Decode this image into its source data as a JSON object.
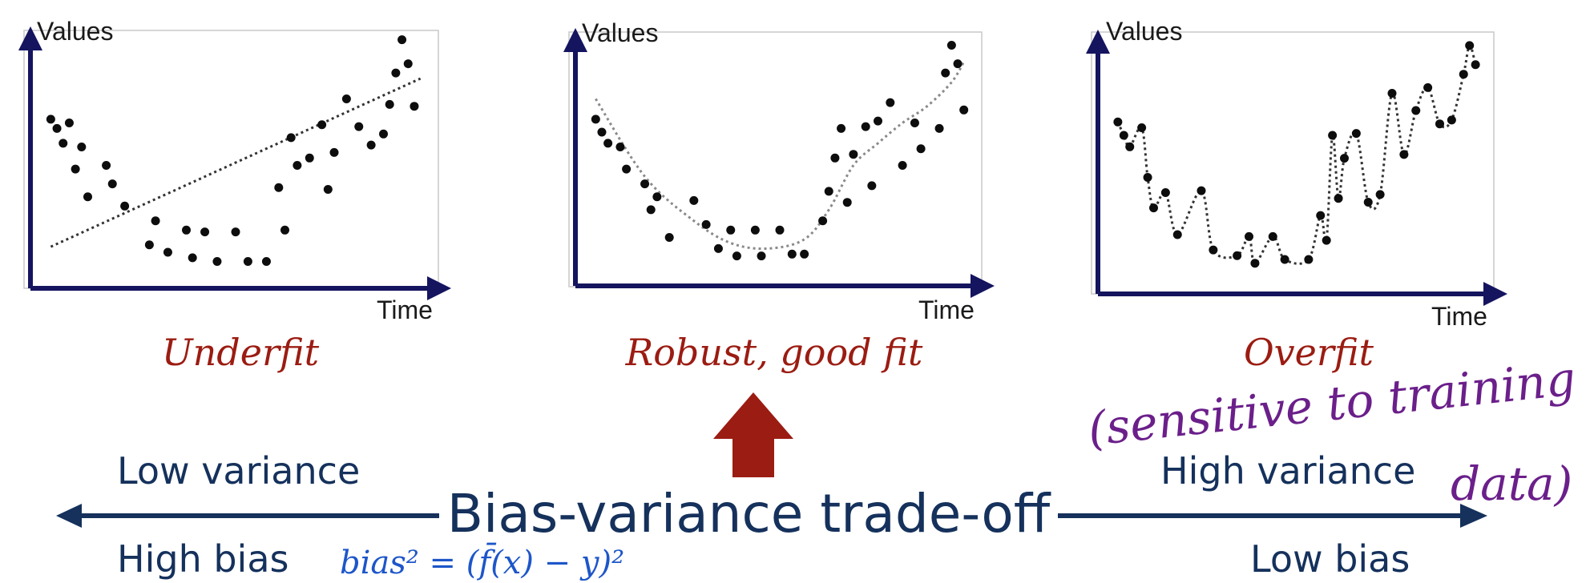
{
  "colors": {
    "axis": "#14145f",
    "point": "#0d0d0d",
    "fit_label": "#9b1c12",
    "tradeoff": "#15315c",
    "arrow_up": "#9b1c12",
    "annotation_purple": "#6b1f8a",
    "annotation_blue": "#1d56c9"
  },
  "chart_data": [
    {
      "type": "scatter",
      "title": "Underfit",
      "xlabel": "Time",
      "ylabel": "Values",
      "grid": false,
      "fit": "linear",
      "points": [
        [
          1,
          8.5
        ],
        [
          1.5,
          8
        ],
        [
          2.5,
          8.3
        ],
        [
          2,
          7.2
        ],
        [
          3.5,
          7
        ],
        [
          3,
          5.8
        ],
        [
          5.5,
          6
        ],
        [
          4,
          4.3
        ],
        [
          6,
          5
        ],
        [
          7,
          3.8
        ],
        [
          9,
          1.7
        ],
        [
          9.5,
          3
        ],
        [
          10.5,
          1.3
        ],
        [
          12,
          2.5
        ],
        [
          12.5,
          1
        ],
        [
          13.5,
          2.4
        ],
        [
          14.5,
          0.8
        ],
        [
          16,
          2.4
        ],
        [
          17,
          0.8
        ],
        [
          18.5,
          0.8
        ],
        [
          19.5,
          4.8
        ],
        [
          20,
          2.5
        ],
        [
          20.5,
          7.5
        ],
        [
          21,
          6
        ],
        [
          22,
          6.4
        ],
        [
          23,
          8.2
        ],
        [
          23.5,
          4.7
        ],
        [
          24,
          6.7
        ],
        [
          25,
          9.6
        ],
        [
          26,
          8.1
        ],
        [
          27,
          7.1
        ],
        [
          28,
          7.7
        ],
        [
          28.5,
          9.3
        ],
        [
          29,
          11
        ],
        [
          29.5,
          12.8
        ],
        [
          30,
          11.5
        ],
        [
          30.5,
          9.2
        ]
      ],
      "fit_line": [
        [
          1,
          1.6
        ],
        [
          31,
          10.7
        ]
      ]
    },
    {
      "type": "scatter",
      "title": "Robust, good fit",
      "xlabel": "Time",
      "ylabel": "Values",
      "grid": false,
      "fit": "smooth",
      "points": [
        [
          1,
          8.5
        ],
        [
          1.5,
          7.8
        ],
        [
          2,
          7.2
        ],
        [
          3,
          7
        ],
        [
          3.5,
          5.8
        ],
        [
          5,
          5
        ],
        [
          5.5,
          3.6
        ],
        [
          6,
          4.3
        ],
        [
          7,
          2.1
        ],
        [
          9,
          4.1
        ],
        [
          10,
          2.8
        ],
        [
          11,
          1.5
        ],
        [
          12,
          2.5
        ],
        [
          12.5,
          1.1
        ],
        [
          14,
          2.5
        ],
        [
          14.5,
          1.1
        ],
        [
          16,
          2.5
        ],
        [
          17,
          1.2
        ],
        [
          18,
          1.2
        ],
        [
          19.5,
          3
        ],
        [
          20,
          4.6
        ],
        [
          20.5,
          6.4
        ],
        [
          21,
          8
        ],
        [
          21.5,
          4
        ],
        [
          22,
          6.6
        ],
        [
          23,
          8.1
        ],
        [
          23.5,
          4.9
        ],
        [
          24,
          8.4
        ],
        [
          25,
          9.4
        ],
        [
          26,
          6
        ],
        [
          27,
          8.3
        ],
        [
          27.5,
          6.9
        ],
        [
          29,
          8
        ],
        [
          29.5,
          11
        ],
        [
          30,
          12.5
        ],
        [
          30.5,
          11.5
        ],
        [
          31,
          9
        ]
      ],
      "fit_line": [
        [
          1,
          9.6
        ],
        [
          5,
          5.4
        ],
        [
          9,
          3
        ],
        [
          12,
          1.8
        ],
        [
          15,
          1.5
        ],
        [
          18,
          2
        ],
        [
          20,
          3.6
        ],
        [
          22,
          6
        ],
        [
          24,
          7.2
        ],
        [
          26,
          8.3
        ],
        [
          28,
          9.2
        ],
        [
          30,
          10.5
        ],
        [
          31,
          11.6
        ]
      ]
    },
    {
      "type": "scatter",
      "title": "Overfit",
      "xlabel": "Time",
      "ylabel": "Values",
      "grid": false,
      "fit": "interpolating",
      "points": [
        [
          1,
          8.5
        ],
        [
          1.5,
          7.8
        ],
        [
          2,
          7.2
        ],
        [
          3,
          8.2
        ],
        [
          3.5,
          5.6
        ],
        [
          4,
          4
        ],
        [
          5,
          4.8
        ],
        [
          6,
          2.6
        ],
        [
          8,
          4.9
        ],
        [
          9,
          1.8
        ],
        [
          11,
          1.5
        ],
        [
          12,
          2.5
        ],
        [
          12.5,
          1.1
        ],
        [
          14,
          2.5
        ],
        [
          15,
          1.3
        ],
        [
          17,
          1.3
        ],
        [
          18,
          3.6
        ],
        [
          18.5,
          2.3
        ],
        [
          19,
          7.8
        ],
        [
          19.5,
          4.5
        ],
        [
          20,
          6.6
        ],
        [
          21,
          7.9
        ],
        [
          22,
          4.3
        ],
        [
          23,
          4.7
        ],
        [
          24,
          10
        ],
        [
          25,
          6.8
        ],
        [
          26,
          9.1
        ],
        [
          27,
          10.3
        ],
        [
          28,
          8.4
        ],
        [
          29,
          8.6
        ],
        [
          30,
          11
        ],
        [
          30.5,
          12.5
        ],
        [
          31,
          11.5
        ]
      ],
      "fit_line": [
        [
          1,
          8.5
        ],
        [
          1.5,
          7.8
        ],
        [
          2,
          7.2
        ],
        [
          3,
          8.2
        ],
        [
          3.5,
          5.6
        ],
        [
          4,
          4
        ],
        [
          5,
          4.8
        ],
        [
          6,
          2.6
        ],
        [
          8,
          4.9
        ],
        [
          9,
          1.8
        ],
        [
          11,
          1.5
        ],
        [
          12,
          2.5
        ],
        [
          12.5,
          1.1
        ],
        [
          14,
          2.5
        ],
        [
          15,
          1.3
        ],
        [
          17,
          1.3
        ],
        [
          18,
          3.6
        ],
        [
          18.5,
          2.3
        ],
        [
          19,
          7.8
        ],
        [
          19.5,
          4.5
        ],
        [
          20,
          6.6
        ],
        [
          21,
          7.9
        ],
        [
          22,
          4.3
        ],
        [
          23,
          4.7
        ],
        [
          24,
          10
        ],
        [
          25,
          6.8
        ],
        [
          26,
          9.1
        ],
        [
          27,
          10.3
        ],
        [
          28,
          8.4
        ],
        [
          29,
          8.6
        ],
        [
          30,
          11
        ],
        [
          30.5,
          12.5
        ],
        [
          31,
          11.5
        ]
      ]
    }
  ],
  "tradeoff": {
    "title": "Bias-variance trade-off",
    "left_top": "Low variance",
    "left_bottom": "High bias",
    "right_top": "High variance",
    "right_bottom": "Low bias"
  },
  "annotations": {
    "sensitive_line1": "(sensitive to training",
    "sensitive_line2": "data)",
    "bias_formula": "bias² = (f̄(x) − y)²"
  }
}
